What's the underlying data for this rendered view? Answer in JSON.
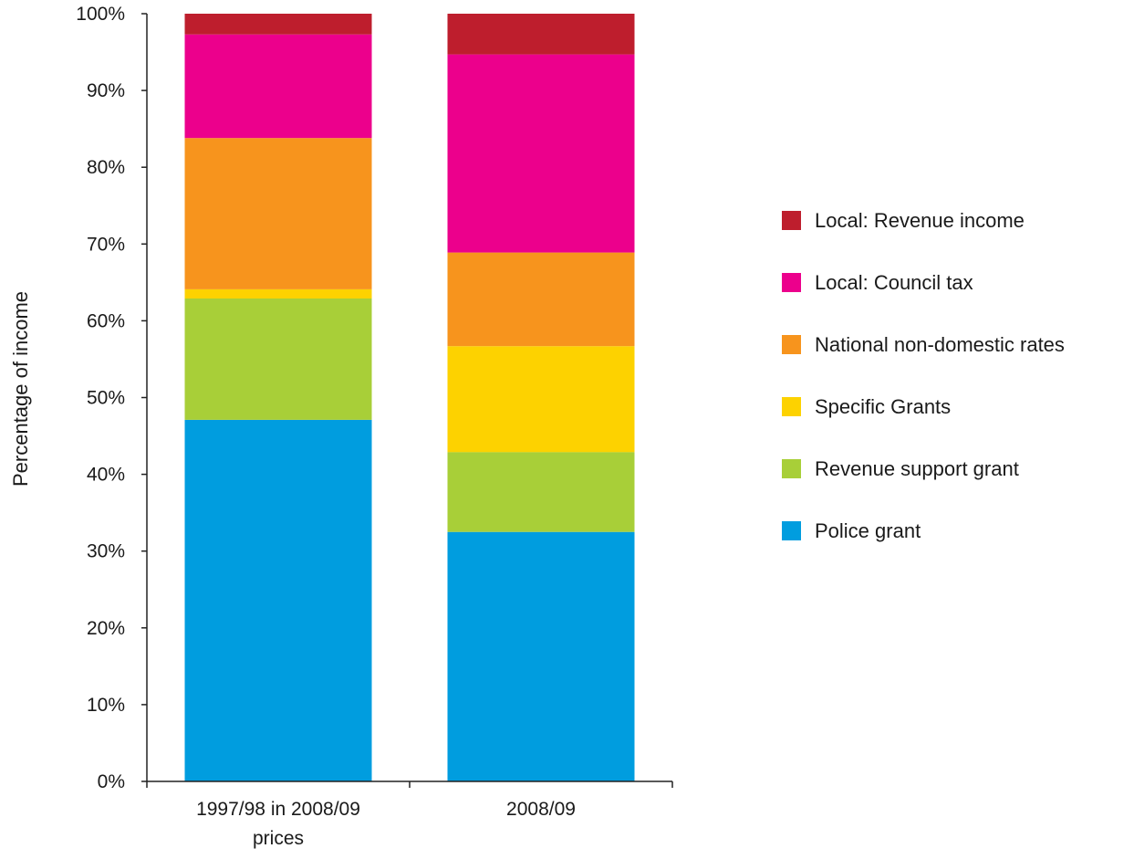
{
  "chart_data": {
    "type": "bar",
    "stacked": true,
    "categories": [
      [
        "1997/98 in 2008/09",
        "prices"
      ],
      [
        "2008/09"
      ]
    ],
    "ylabel": "Percentage of income",
    "ylim": [
      0,
      100
    ],
    "y_ticks": [
      "0%",
      "10%",
      "20%",
      "30%",
      "40%",
      "50%",
      "60%",
      "70%",
      "80%",
      "90%",
      "100%"
    ],
    "legend_position": "right",
    "series": [
      {
        "name": "Police grant",
        "color": "#009ddf",
        "values": [
          47.1,
          32.5
        ]
      },
      {
        "name": "Revenue support grant",
        "color": "#a8cf38",
        "values": [
          15.8,
          10.4
        ]
      },
      {
        "name": "Specific Grants",
        "color": "#fdd200",
        "values": [
          1.2,
          13.8
        ]
      },
      {
        "name": "National non-domestic rates",
        "color": "#f7941d",
        "values": [
          19.7,
          12.2
        ]
      },
      {
        "name": "Local: Council tax",
        "color": "#ec008c",
        "values": [
          13.5,
          25.8
        ]
      },
      {
        "name": "Local: Revenue income",
        "color": "#be1e2d",
        "values": [
          2.7,
          5.3
        ]
      }
    ]
  }
}
